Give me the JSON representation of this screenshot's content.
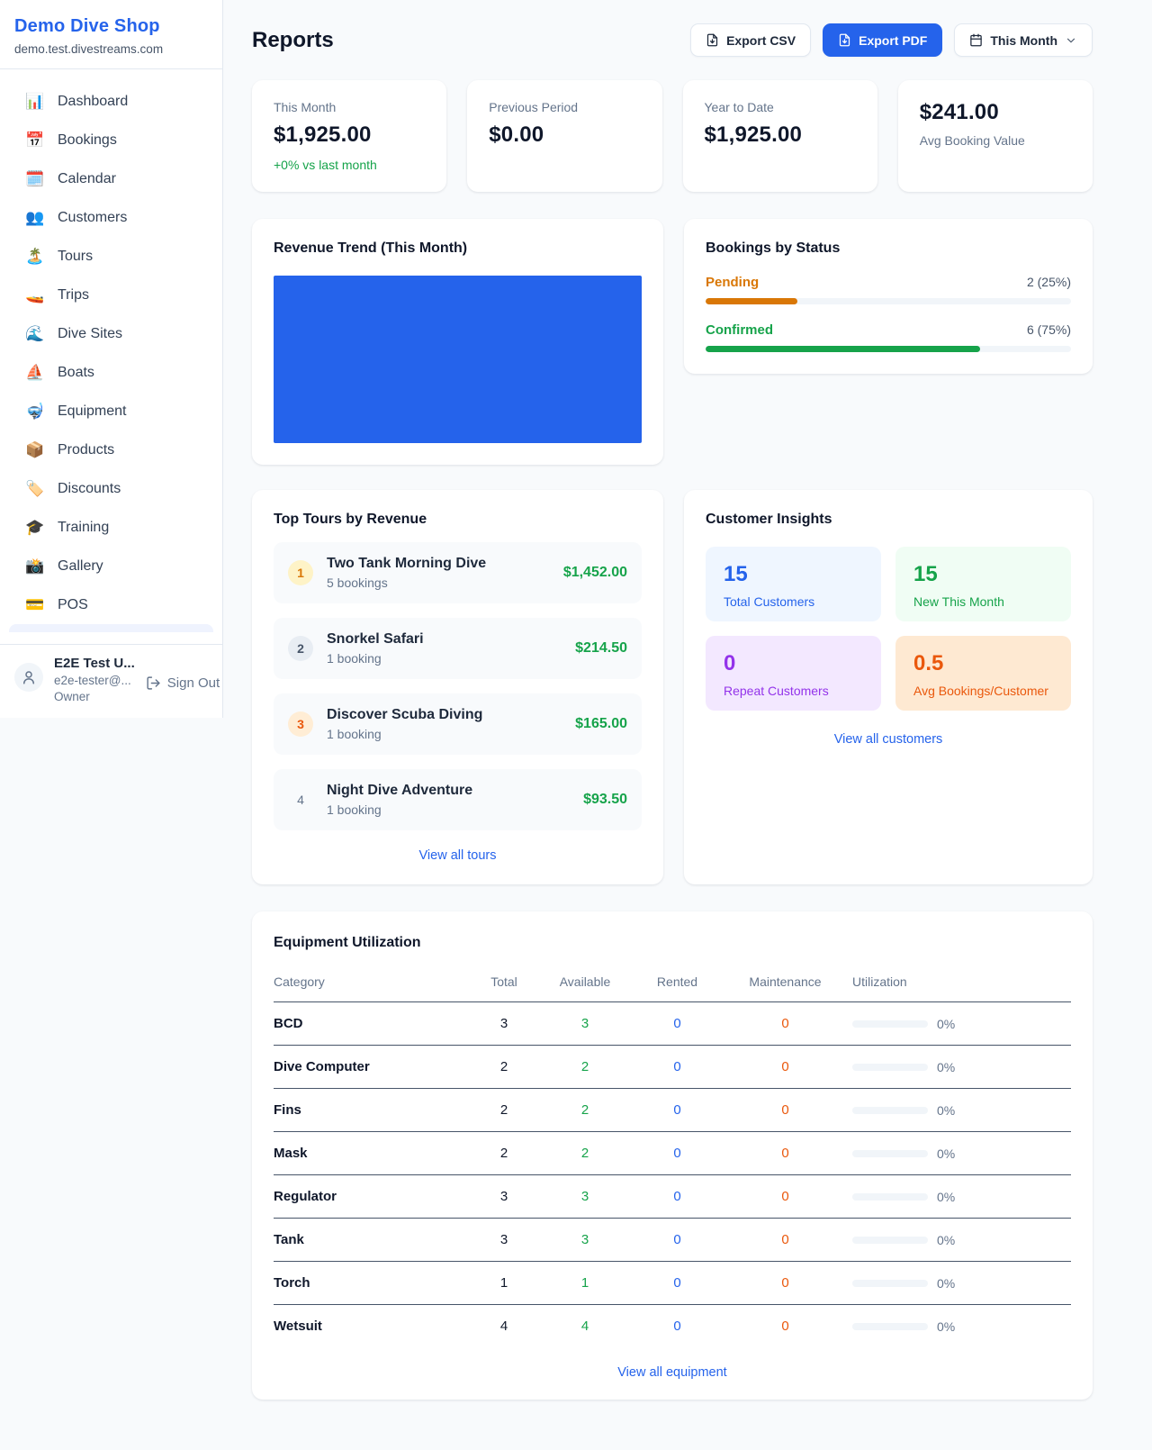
{
  "colors": {
    "accent_blue": "#2563eb",
    "green": "#16a34a",
    "pending_orange": "#d97706",
    "orange": "#ea580c",
    "purple": "#9333ea"
  },
  "sidebar": {
    "shop_name": "Demo Dive Shop",
    "shop_domain": "demo.test.divestreams.com",
    "items": [
      {
        "label": "Dashboard",
        "icon": "📊"
      },
      {
        "label": "Bookings",
        "icon": "📅"
      },
      {
        "label": "Calendar",
        "icon": "🗓️"
      },
      {
        "label": "Customers",
        "icon": "👥"
      },
      {
        "label": "Tours",
        "icon": "🏝️"
      },
      {
        "label": "Trips",
        "icon": "🚤"
      },
      {
        "label": "Dive Sites",
        "icon": "🌊"
      },
      {
        "label": "Boats",
        "icon": "⛵"
      },
      {
        "label": "Equipment",
        "icon": "🤿"
      },
      {
        "label": "Products",
        "icon": "📦"
      },
      {
        "label": "Discounts",
        "icon": "🏷️"
      },
      {
        "label": "Training",
        "icon": "🎓"
      },
      {
        "label": "Gallery",
        "icon": "📸"
      },
      {
        "label": "POS",
        "icon": "💳"
      }
    ],
    "user": {
      "name": "E2E Test U...",
      "email": "e2e-tester@...",
      "role": "Owner",
      "sign_out_label": "Sign Out"
    }
  },
  "header": {
    "title": "Reports",
    "export_csv_label": "Export CSV",
    "export_pdf_label": "Export PDF",
    "period_label": "This Month"
  },
  "stats": {
    "cards": [
      {
        "label": "This Month",
        "value": "$1,925.00",
        "delta": "+0% vs last month"
      },
      {
        "label": "Previous Period",
        "value": "$0.00"
      },
      {
        "label": "Year to Date",
        "value": "$1,925.00"
      },
      {
        "label": "Avg Booking Value",
        "value": "$241.00"
      }
    ]
  },
  "revenue_trend": {
    "title": "Revenue Trend (This Month)",
    "bar_color": "#2563eb",
    "fill_pct": 100
  },
  "bookings_by_status": {
    "title": "Bookings by Status",
    "rows": [
      {
        "label": "Pending",
        "value": "2 (25%)",
        "pct": 25
      },
      {
        "label": "Confirmed",
        "value": "6 (75%)",
        "pct": 75
      }
    ]
  },
  "top_tours": {
    "title": "Top Tours by Revenue",
    "rows": [
      {
        "rank": "1",
        "name": "Two Tank Morning Dive",
        "bookings": "5 bookings",
        "revenue": "$1,452.00"
      },
      {
        "rank": "2",
        "name": "Snorkel Safari",
        "bookings": "1 booking",
        "revenue": "$214.50"
      },
      {
        "rank": "3",
        "name": "Discover Scuba Diving",
        "bookings": "1 booking",
        "revenue": "$165.00"
      },
      {
        "rank": "4",
        "name": "Night Dive Adventure",
        "bookings": "1 booking",
        "revenue": "$93.50"
      }
    ],
    "view_all": "View all tours"
  },
  "customer_insights": {
    "title": "Customer Insights",
    "tiles": [
      {
        "value": "15",
        "label": "Total Customers"
      },
      {
        "value": "15",
        "label": "New This Month"
      },
      {
        "value": "0",
        "label": "Repeat Customers"
      },
      {
        "value": "0.5",
        "label": "Avg Bookings/Customer"
      }
    ],
    "view_all": "View all customers"
  },
  "equipment": {
    "title": "Equipment Utilization",
    "columns": [
      "Category",
      "Total",
      "Available",
      "Rented",
      "Maintenance",
      "Utilization"
    ],
    "rows": [
      {
        "category": "BCD",
        "total": "3",
        "available": "3",
        "rented": "0",
        "maintenance": "0",
        "utilization": "0%",
        "pct": 0
      },
      {
        "category": "Dive Computer",
        "total": "2",
        "available": "2",
        "rented": "0",
        "maintenance": "0",
        "utilization": "0%",
        "pct": 0
      },
      {
        "category": "Fins",
        "total": "2",
        "available": "2",
        "rented": "0",
        "maintenance": "0",
        "utilization": "0%",
        "pct": 0
      },
      {
        "category": "Mask",
        "total": "2",
        "available": "2",
        "rented": "0",
        "maintenance": "0",
        "utilization": "0%",
        "pct": 0
      },
      {
        "category": "Regulator",
        "total": "3",
        "available": "3",
        "rented": "0",
        "maintenance": "0",
        "utilization": "0%",
        "pct": 0
      },
      {
        "category": "Tank",
        "total": "3",
        "available": "3",
        "rented": "0",
        "maintenance": "0",
        "utilization": "0%",
        "pct": 0
      },
      {
        "category": "Torch",
        "total": "1",
        "available": "1",
        "rented": "0",
        "maintenance": "0",
        "utilization": "0%",
        "pct": 0
      },
      {
        "category": "Wetsuit",
        "total": "4",
        "available": "4",
        "rented": "0",
        "maintenance": "0",
        "utilization": "0%",
        "pct": 0
      }
    ],
    "view_all": "View all equipment"
  }
}
